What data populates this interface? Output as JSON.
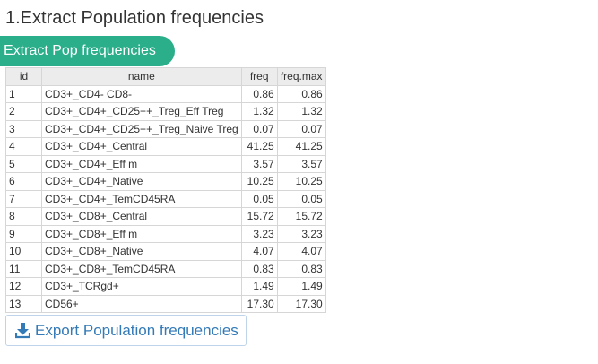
{
  "page_title": "1.Extract Population frequencies",
  "extract_button": {
    "label": "Extract Pop frequencies",
    "color": "#2bae8a"
  },
  "table": {
    "columns": [
      "id",
      "name",
      "freq",
      "freq.max"
    ],
    "rows": [
      {
        "id": "1",
        "name": "CD3+_CD4- CD8-",
        "freq": "0.86",
        "freq_max": "0.86"
      },
      {
        "id": "2",
        "name": "CD3+_CD4+_CD25++_Treg_Eff Treg",
        "freq": "1.32",
        "freq_max": "1.32"
      },
      {
        "id": "3",
        "name": "CD3+_CD4+_CD25++_Treg_Naive Treg",
        "freq": "0.07",
        "freq_max": "0.07"
      },
      {
        "id": "4",
        "name": "CD3+_CD4+_Central",
        "freq": "41.25",
        "freq_max": "41.25"
      },
      {
        "id": "5",
        "name": "CD3+_CD4+_Eff m",
        "freq": "3.57",
        "freq_max": "3.57"
      },
      {
        "id": "6",
        "name": "CD3+_CD4+_Native",
        "freq": "10.25",
        "freq_max": "10.25"
      },
      {
        "id": "7",
        "name": "CD3+_CD4+_TemCD45RA",
        "freq": "0.05",
        "freq_max": "0.05"
      },
      {
        "id": "8",
        "name": "CD3+_CD8+_Central",
        "freq": "15.72",
        "freq_max": "15.72"
      },
      {
        "id": "9",
        "name": "CD3+_CD8+_Eff m",
        "freq": "3.23",
        "freq_max": "3.23"
      },
      {
        "id": "10",
        "name": "CD3+_CD8+_Native",
        "freq": "4.07",
        "freq_max": "4.07"
      },
      {
        "id": "11",
        "name": "CD3+_CD8+_TemCD45RA",
        "freq": "0.83",
        "freq_max": "0.83"
      },
      {
        "id": "12",
        "name": "CD3+_TCRgd+",
        "freq": "1.49",
        "freq_max": "1.49"
      },
      {
        "id": "13",
        "name": "CD56+",
        "freq": "17.30",
        "freq_max": "17.30"
      }
    ]
  },
  "export_button": {
    "label": "Export Population frequencies",
    "icon": "download-icon",
    "color": "#337ab7"
  }
}
